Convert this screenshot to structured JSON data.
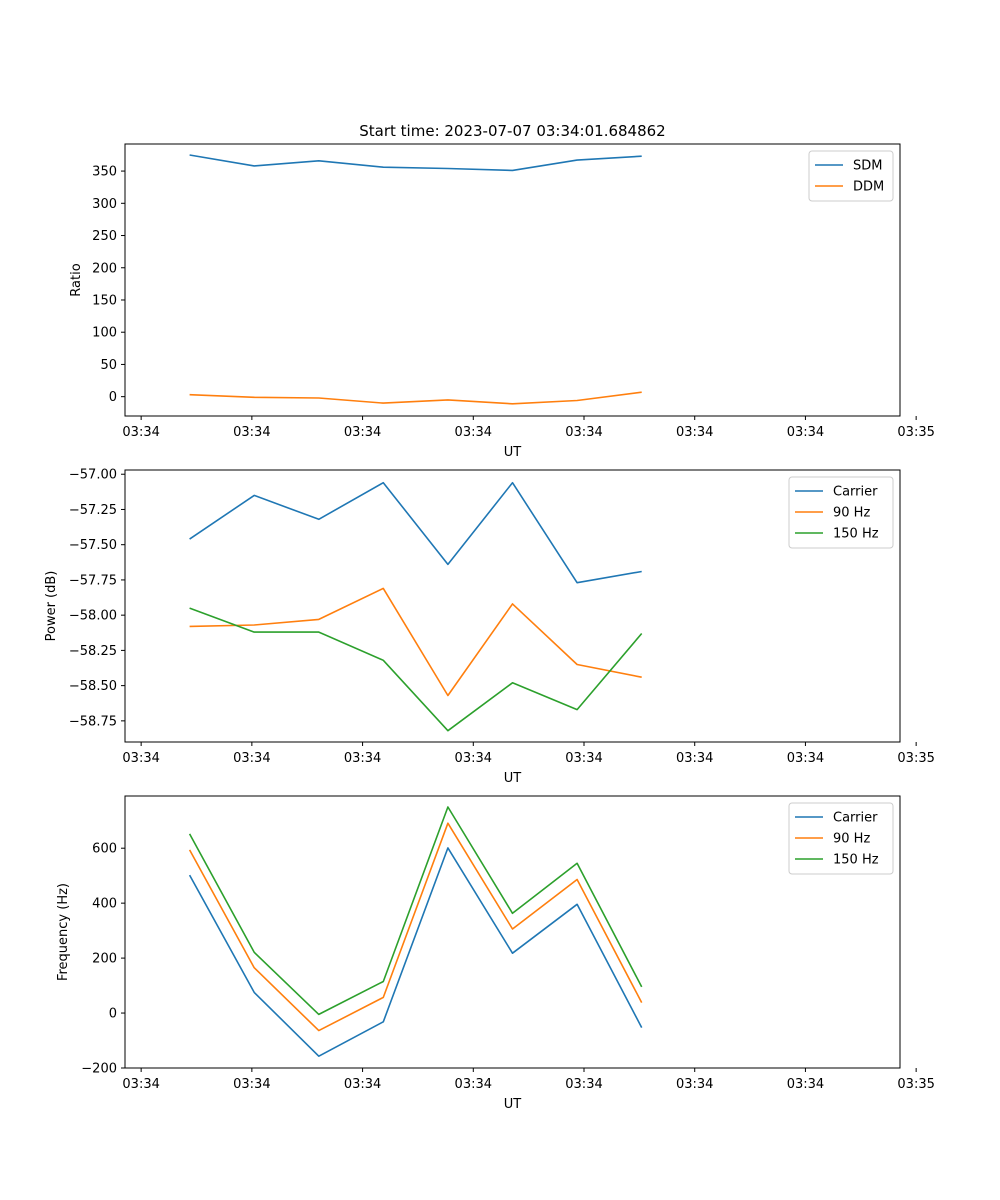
{
  "figure_title": "Start time: 2023-07-07 03:34:01.684862",
  "chart_data": [
    {
      "type": "line",
      "title": "Start time: 2023-07-07 03:34:01.684862",
      "xlabel": "UT",
      "ylabel": "Ratio",
      "x_ticks": [
        "03:34",
        "03:34",
        "03:34",
        "03:34",
        "03:34",
        "03:34",
        "03:34",
        "03:35"
      ],
      "xlim": [
        0,
        12
      ],
      "ylim": [
        -30,
        392
      ],
      "y_ticks": [
        0,
        50,
        100,
        150,
        200,
        250,
        300,
        350
      ],
      "y_tick_labels": [
        "0",
        "50",
        "100",
        "150",
        "200",
        "250",
        "300",
        "350"
      ],
      "x": [
        1,
        2,
        3,
        4,
        5,
        6,
        7,
        8
      ],
      "series": [
        {
          "name": "SDM",
          "color": "#1f77b4",
          "values": [
            375,
            358,
            366,
            356,
            354,
            351,
            367,
            373
          ]
        },
        {
          "name": "DDM",
          "color": "#ff7f0e",
          "values": [
            3,
            -1,
            -2,
            -10,
            -5,
            -11,
            -6,
            7
          ]
        }
      ],
      "legend": "top-right",
      "grid": false
    },
    {
      "type": "line",
      "title": "",
      "xlabel": "UT",
      "ylabel": "Power (dB)",
      "x_ticks": [
        "03:34",
        "03:34",
        "03:34",
        "03:34",
        "03:34",
        "03:34",
        "03:34",
        "03:35"
      ],
      "xlim": [
        0,
        12
      ],
      "ylim": [
        -58.9,
        -56.97
      ],
      "y_ticks": [
        -58.75,
        -58.5,
        -58.25,
        -58.0,
        -57.75,
        -57.5,
        -57.25,
        -57.0
      ],
      "y_tick_labels": [
        "−58.75",
        "−58.50",
        "−58.25",
        "−58.00",
        "−57.75",
        "−57.50",
        "−57.25",
        "−57.00"
      ],
      "x": [
        1,
        2,
        3,
        4,
        5,
        6,
        7,
        8
      ],
      "series": [
        {
          "name": "Carrier",
          "color": "#1f77b4",
          "values": [
            -57.46,
            -57.15,
            -57.32,
            -57.06,
            -57.64,
            -57.06,
            -57.77,
            -57.69
          ]
        },
        {
          "name": "90 Hz",
          "color": "#ff7f0e",
          "values": [
            -58.08,
            -58.07,
            -58.03,
            -57.81,
            -58.57,
            -57.92,
            -58.35,
            -58.44
          ]
        },
        {
          "name": "150 Hz",
          "color": "#2ca02c",
          "values": [
            -57.95,
            -58.12,
            -58.12,
            -58.32,
            -58.82,
            -58.48,
            -58.67,
            -58.13
          ]
        }
      ],
      "legend": "top-right",
      "grid": false
    },
    {
      "type": "line",
      "title": "",
      "xlabel": "UT",
      "ylabel": "Frequency (Hz)",
      "x_ticks": [
        "03:34",
        "03:34",
        "03:34",
        "03:34",
        "03:34",
        "03:34",
        "03:34",
        "03:35"
      ],
      "xlim": [
        0,
        12
      ],
      "ylim": [
        -200,
        790
      ],
      "y_ticks": [
        -200,
        0,
        200,
        400,
        600
      ],
      "y_tick_labels": [
        "−200",
        "0",
        "200",
        "400",
        "600"
      ],
      "x": [
        1,
        2,
        3,
        4,
        5,
        6,
        7,
        8
      ],
      "series": [
        {
          "name": "Carrier",
          "color": "#1f77b4",
          "values": [
            502,
            75,
            -157,
            -32,
            601,
            218,
            396,
            -53
          ]
        },
        {
          "name": "90 Hz",
          "color": "#ff7f0e",
          "values": [
            594,
            165,
            -64,
            57,
            691,
            306,
            486,
            38
          ]
        },
        {
          "name": "150 Hz",
          "color": "#2ca02c",
          "values": [
            652,
            221,
            -5,
            115,
            750,
            363,
            545,
            95
          ]
        }
      ],
      "legend": "top-right",
      "grid": false
    }
  ]
}
